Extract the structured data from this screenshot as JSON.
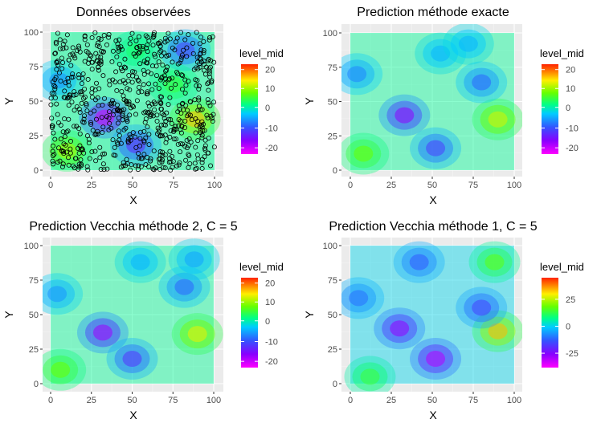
{
  "chart_data": [
    {
      "type": "heatmap",
      "title": "Données observées",
      "xlabel": "X",
      "ylabel": "Y",
      "xlim": [
        0,
        100
      ],
      "ylim": [
        0,
        100
      ],
      "x_ticks": [
        "0",
        "25",
        "50",
        "75",
        "100"
      ],
      "y_ticks": [
        "0",
        "25",
        "50",
        "75",
        "100"
      ],
      "legend_title": "level_mid",
      "legend_ticks": [
        "20",
        "10",
        "0",
        "-10",
        "-20"
      ],
      "legend_placement": "right",
      "grid": true,
      "has_points": true,
      "hotspots": [
        {
          "x": 33,
          "y": 38,
          "value": -22
        },
        {
          "x": 88,
          "y": 37,
          "value": 18
        },
        {
          "x": 10,
          "y": 14,
          "value": 12
        },
        {
          "x": 52,
          "y": 18,
          "value": -14
        },
        {
          "x": 82,
          "y": 87,
          "value": -12
        },
        {
          "x": 5,
          "y": 65,
          "value": -6
        },
        {
          "x": 52,
          "y": 86,
          "value": 4
        },
        {
          "x": 75,
          "y": 62,
          "value": 6
        }
      ]
    },
    {
      "type": "heatmap",
      "title": "Prediction méthode exacte",
      "xlabel": "X",
      "ylabel": "Y",
      "xlim": [
        0,
        100
      ],
      "ylim": [
        0,
        100
      ],
      "x_ticks": [
        "0",
        "25",
        "50",
        "75",
        "100"
      ],
      "y_ticks": [
        "0",
        "25",
        "50",
        "75",
        "100"
      ],
      "legend_title": "level_mid",
      "legend_ticks": [
        "20",
        "10",
        "0",
        "-10",
        "-20"
      ],
      "legend_placement": "right",
      "grid": true,
      "has_points": false,
      "hotspots": [
        {
          "x": 33,
          "y": 40,
          "value": -18
        },
        {
          "x": 90,
          "y": 37,
          "value": 14
        },
        {
          "x": 8,
          "y": 12,
          "value": 9
        },
        {
          "x": 52,
          "y": 16,
          "value": -12
        },
        {
          "x": 80,
          "y": 64,
          "value": -9
        },
        {
          "x": 4,
          "y": 70,
          "value": -7
        },
        {
          "x": 55,
          "y": 85,
          "value": -4
        },
        {
          "x": 72,
          "y": 92,
          "value": -4
        }
      ]
    },
    {
      "type": "heatmap",
      "title": "Prediction Vecchia méthode 2, C = 5",
      "xlabel": "X",
      "ylabel": "Y",
      "xlim": [
        0,
        100
      ],
      "ylim": [
        0,
        100
      ],
      "x_ticks": [
        "0",
        "25",
        "50",
        "75",
        "100"
      ],
      "y_ticks": [
        "0",
        "25",
        "50",
        "75",
        "100"
      ],
      "legend_title": "level_mid",
      "legend_ticks": [
        "20",
        "10",
        "0",
        "-10",
        "-20"
      ],
      "legend_placement": "right",
      "grid": true,
      "has_points": false,
      "hotspots": [
        {
          "x": 32,
          "y": 37,
          "value": -19
        },
        {
          "x": 90,
          "y": 36,
          "value": 15
        },
        {
          "x": 6,
          "y": 10,
          "value": 9
        },
        {
          "x": 50,
          "y": 18,
          "value": -13
        },
        {
          "x": 82,
          "y": 70,
          "value": -9
        },
        {
          "x": 4,
          "y": 65,
          "value": -6
        },
        {
          "x": 55,
          "y": 88,
          "value": -4
        },
        {
          "x": 88,
          "y": 90,
          "value": -5
        }
      ]
    },
    {
      "type": "heatmap",
      "title": "Prediction Vecchia méthode 1, C = 5",
      "xlabel": "X",
      "ylabel": "Y",
      "xlim": [
        0,
        100
      ],
      "ylim": [
        0,
        100
      ],
      "x_ticks": [
        "0",
        "25",
        "50",
        "75",
        "100"
      ],
      "y_ticks": [
        "0",
        "25",
        "50",
        "75",
        "100"
      ],
      "legend_title": "level_mid",
      "legend_ticks": [
        "25",
        "0",
        "-25"
      ],
      "legend_placement": "right",
      "grid": true,
      "has_points": false,
      "hotspots": [
        {
          "x": 30,
          "y": 40,
          "value": -25
        },
        {
          "x": 90,
          "y": 38,
          "value": 30
        },
        {
          "x": 12,
          "y": 5,
          "value": 12
        },
        {
          "x": 52,
          "y": 18,
          "value": -28
        },
        {
          "x": 80,
          "y": 55,
          "value": -15
        },
        {
          "x": 5,
          "y": 62,
          "value": -10
        },
        {
          "x": 42,
          "y": 88,
          "value": -12
        },
        {
          "x": 88,
          "y": 88,
          "value": 15
        }
      ]
    }
  ]
}
